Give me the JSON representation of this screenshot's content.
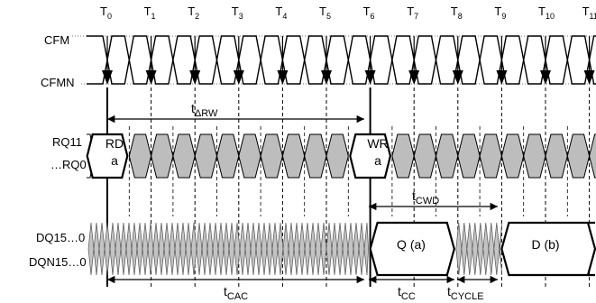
{
  "ticks": [
    "0",
    "1",
    "2",
    "3",
    "4",
    "5",
    "6",
    "7",
    "8",
    "9",
    "10",
    "11"
  ],
  "tick_prefix": "T",
  "signals": {
    "cfm": "CFM",
    "cfmn": "CFMN",
    "rq_line1": "RQ11",
    "rq_line2": "…RQ0",
    "dq_line1": "DQ15…0",
    "dq_line2": "DQN15…0"
  },
  "packets": {
    "rd_line1": "RD",
    "rd_line2": "a",
    "wr_line1": "WR",
    "wr_line2": "a",
    "q": "Q (a)",
    "d": "D (b)"
  },
  "params": {
    "t_rw": {
      "base": "t",
      "sub": "ΔRW"
    },
    "t_cwd": {
      "base": "t",
      "sub": "CWD"
    },
    "t_cac": {
      "base": "t",
      "sub": "CAC"
    },
    "t_cc": {
      "base": "t",
      "sub": "CC"
    },
    "t_cycle": {
      "base": "t",
      "sub": "CYCLE"
    }
  }
}
